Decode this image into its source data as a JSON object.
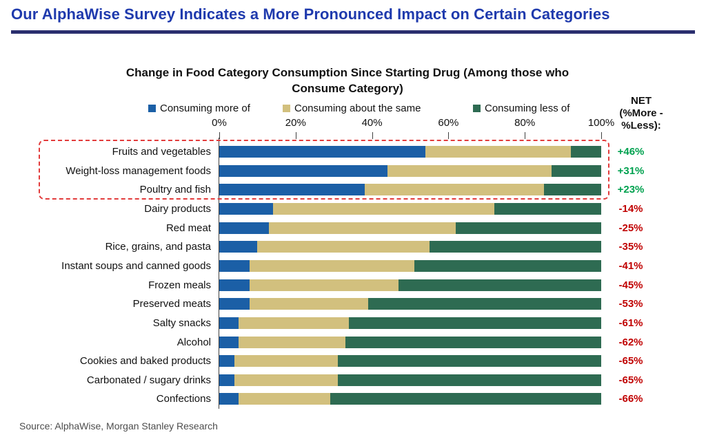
{
  "page": {
    "title": "Our AlphaWise Survey Indicates a More Pronounced Impact on Certain Categories",
    "source": "Source: AlphaWise, Morgan Stanley Research"
  },
  "colors": {
    "title_blue": "#1f3aad",
    "rule_navy": "#2a2e6e",
    "more": "#1b5fa6",
    "same": "#d2c07e",
    "less": "#2e6b52",
    "net_positive": "#00a14f",
    "net_negative": "#c00000",
    "highlight_red": "#e23b3b"
  },
  "chart_data": {
    "type": "bar",
    "orientation": "horizontal-stacked",
    "title": "Change in Food Category Consumption Since Starting Drug (Among those who Consume Category)",
    "legend": [
      "Consuming more of",
      "Consuming about the same",
      "Consuming less of"
    ],
    "x_ticks": [
      "0%",
      "20%",
      "40%",
      "60%",
      "80%",
      "100%"
    ],
    "xlim": [
      0,
      100
    ],
    "grid": false,
    "legend_position": "top",
    "net_header_lines": [
      "NET",
      "(%More -",
      "%Less):"
    ],
    "categories": [
      "Fruits and vegetables",
      "Weight-loss management foods",
      "Poultry and fish",
      "Dairy products",
      "Red meat",
      "Rice, grains, and pasta",
      "Instant soups and canned goods",
      "Frozen meals",
      "Preserved meats",
      "Salty snacks",
      "Alcohol",
      "Cookies and baked products",
      "Carbonated / sugary drinks",
      "Confections"
    ],
    "series": [
      {
        "name": "Consuming more of",
        "values": [
          54,
          44,
          38,
          14,
          13,
          10,
          8,
          8,
          8,
          5,
          5,
          4,
          4,
          5
        ]
      },
      {
        "name": "Consuming about the same",
        "values": [
          38,
          43,
          47,
          58,
          49,
          45,
          43,
          39,
          31,
          29,
          28,
          27,
          27,
          24
        ]
      },
      {
        "name": "Consuming less of",
        "values": [
          8,
          13,
          15,
          28,
          38,
          45,
          49,
          53,
          61,
          66,
          67,
          69,
          69,
          71
        ]
      }
    ],
    "net": [
      "+46%",
      "+31%",
      "+23%",
      "-14%",
      "-25%",
      "-35%",
      "-41%",
      "-45%",
      "-53%",
      "-61%",
      "-62%",
      "-65%",
      "-65%",
      "-66%"
    ],
    "highlighted_rows": [
      0,
      1,
      2
    ]
  }
}
